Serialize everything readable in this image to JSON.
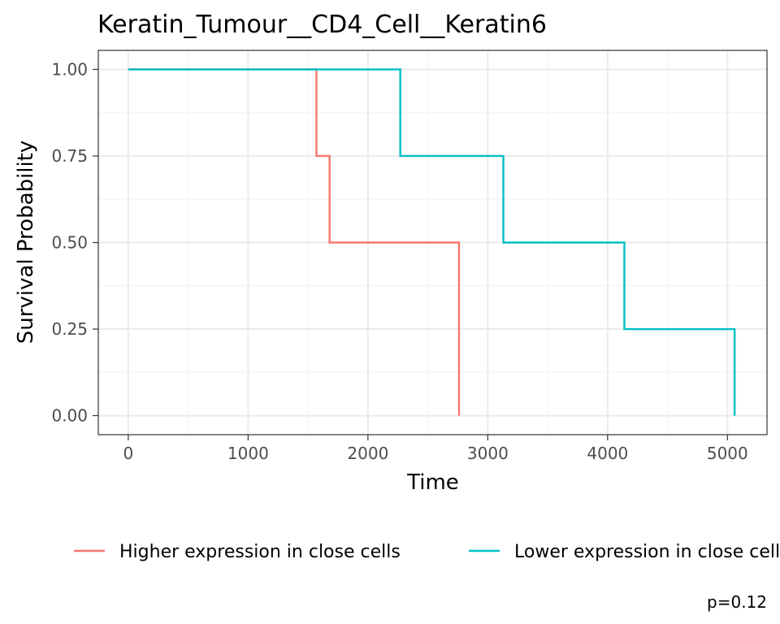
{
  "chart_data": {
    "type": "line",
    "subtype": "kaplan-meier-step",
    "title": "Keratin_Tumour__CD4_Cell__Keratin6",
    "xlabel": "Time",
    "ylabel": "Survival Probability",
    "xlim": [
      -250,
      5330
    ],
    "ylim": [
      -0.055,
      1.055
    ],
    "x_ticks": [
      0,
      1000,
      2000,
      3000,
      4000,
      5000
    ],
    "x_tick_labels": [
      "0",
      "1000",
      "2000",
      "3000",
      "4000",
      "5000"
    ],
    "y_ticks": [
      0,
      0.25,
      0.5,
      0.75,
      1.0
    ],
    "y_tick_labels": [
      "0.00",
      "0.25",
      "0.50",
      "0.75",
      "1.00"
    ],
    "grid": true,
    "legend_position": "bottom",
    "series": [
      {
        "name": "Higher expression in close cells",
        "color": "#F8766D",
        "x": [
          0,
          1570,
          1680,
          2760
        ],
        "y": [
          1.0,
          0.75,
          0.5,
          0.0
        ]
      },
      {
        "name": "Lower expression in close cells",
        "color": "#00BFC4",
        "x": [
          0,
          2270,
          3130,
          4140,
          5060
        ],
        "y": [
          1.0,
          0.75,
          0.5,
          0.25,
          0.0
        ]
      }
    ],
    "annotation": "p=0.12"
  }
}
